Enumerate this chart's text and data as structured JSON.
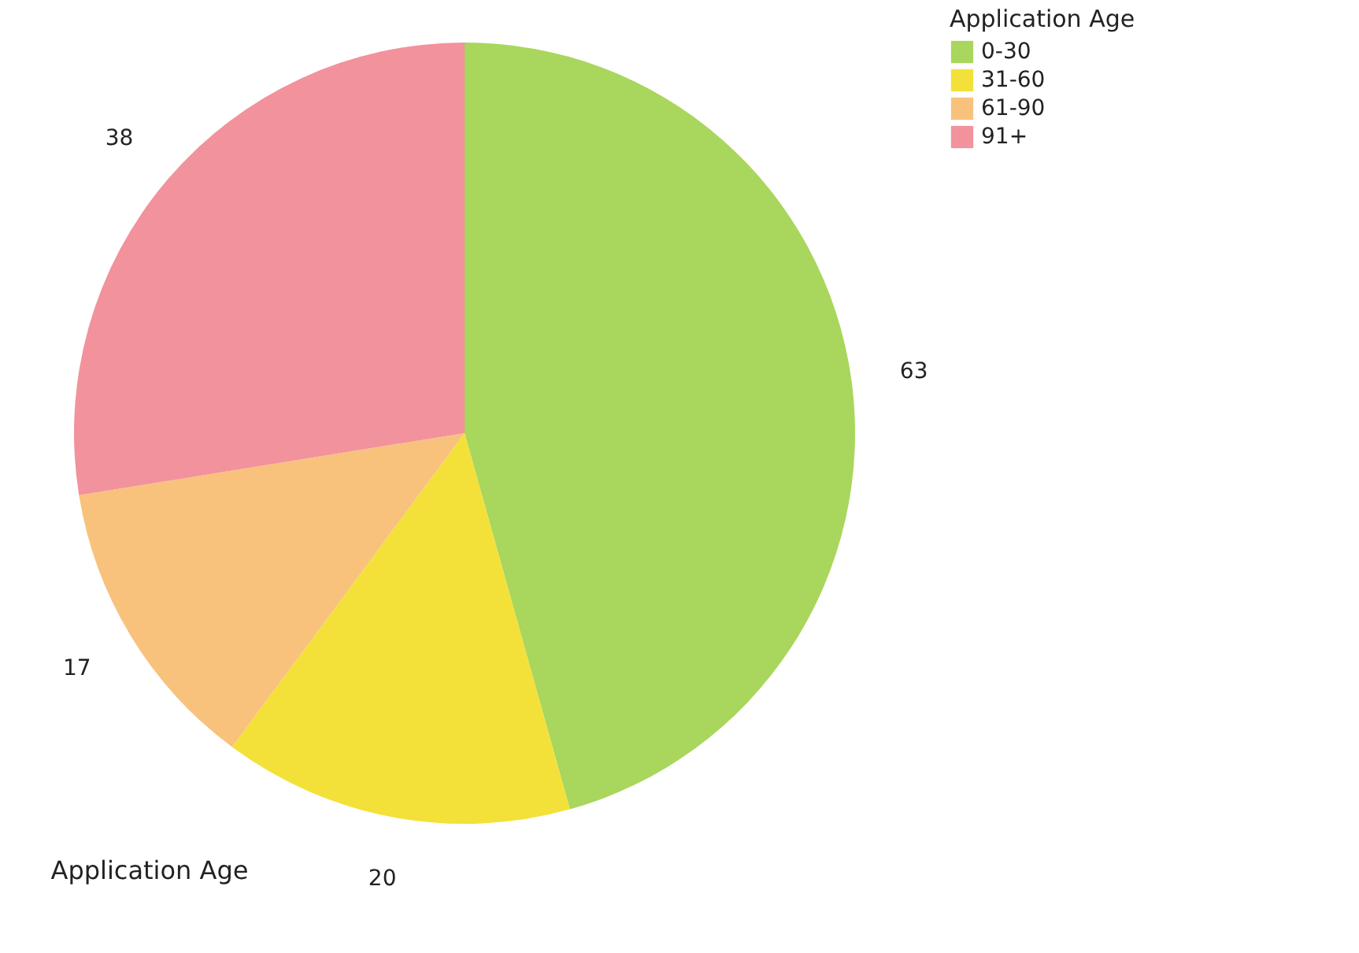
{
  "chart_data": {
    "type": "pie",
    "xlabel": "Application Age",
    "legend_title": "Application Age",
    "legend": "top right",
    "data_labels": true,
    "categories": [
      "0-30",
      "31-60",
      "61-90",
      "91+"
    ],
    "values": [
      63,
      20,
      17,
      38
    ],
    "colors": [
      "#a9d65c",
      "#f3e13a",
      "#f8c27c",
      "#f2929c"
    ]
  }
}
